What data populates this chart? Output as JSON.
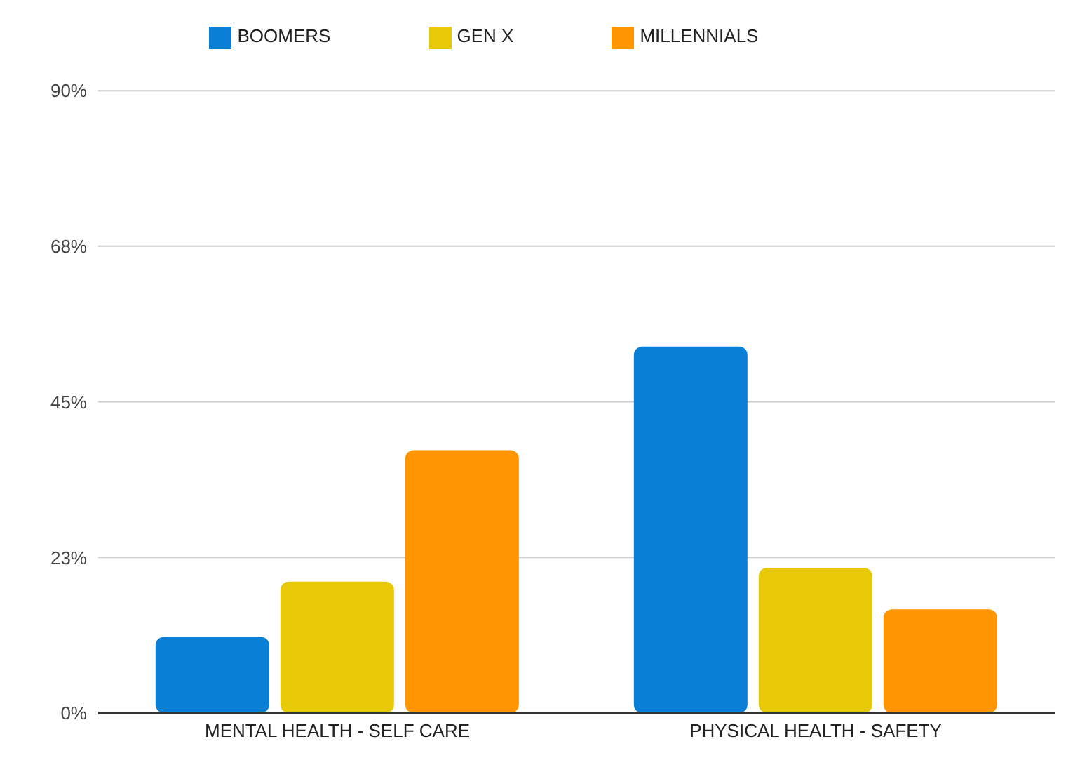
{
  "chart_data": {
    "type": "bar",
    "categories": [
      "MENTAL HEALTH - SELF CARE",
      "PHYSICAL HEALTH - SAFETY"
    ],
    "series": [
      {
        "name": "BOOMERS",
        "color": "#0a7fd6",
        "values": [
          11,
          53
        ]
      },
      {
        "name": "GEN X",
        "color": "#e8c908",
        "values": [
          19,
          21
        ]
      },
      {
        "name": "MILLENNIALS",
        "color": "#ff9500",
        "values": [
          38,
          15
        ]
      }
    ],
    "ylim": [
      0,
      90
    ],
    "yticks": [
      {
        "value": 0,
        "label": "0%"
      },
      {
        "value": 22.5,
        "label": "23%"
      },
      {
        "value": 45,
        "label": "45%"
      },
      {
        "value": 67.5,
        "label": "68%"
      },
      {
        "value": 90,
        "label": "90%"
      }
    ],
    "grid": "y",
    "legend": "top"
  }
}
